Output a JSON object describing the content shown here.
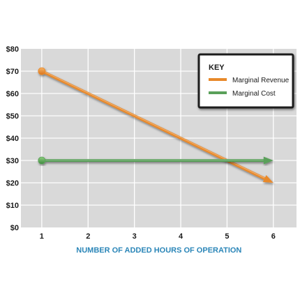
{
  "chart_data": {
    "type": "line",
    "xlabel": "NUMBER OF ADDED HOURS OF OPERATION",
    "ylabel": "",
    "x_ticks": [
      "1",
      "2",
      "3",
      "4",
      "5",
      "6"
    ],
    "y_ticks": [
      "$0",
      "$10",
      "$20",
      "$30",
      "$40",
      "$50",
      "$60",
      "$70",
      "$80"
    ],
    "xlim": [
      0.55,
      6.5
    ],
    "ylim": [
      0,
      80
    ],
    "grid": true,
    "legend_position": "top-right",
    "legend_title": "KEY",
    "series": [
      {
        "name": "Marginal Revenue",
        "color": "#e8892a",
        "x": [
          1,
          6
        ],
        "y": [
          70,
          20
        ]
      },
      {
        "name": "Marginal Cost",
        "color": "#5aa05a",
        "x": [
          1,
          6
        ],
        "y": [
          30,
          30
        ]
      }
    ]
  },
  "colors": {
    "plot_background": "#d9d9d9",
    "grid": "#ffffff",
    "axis_title": "#2b86b8"
  }
}
